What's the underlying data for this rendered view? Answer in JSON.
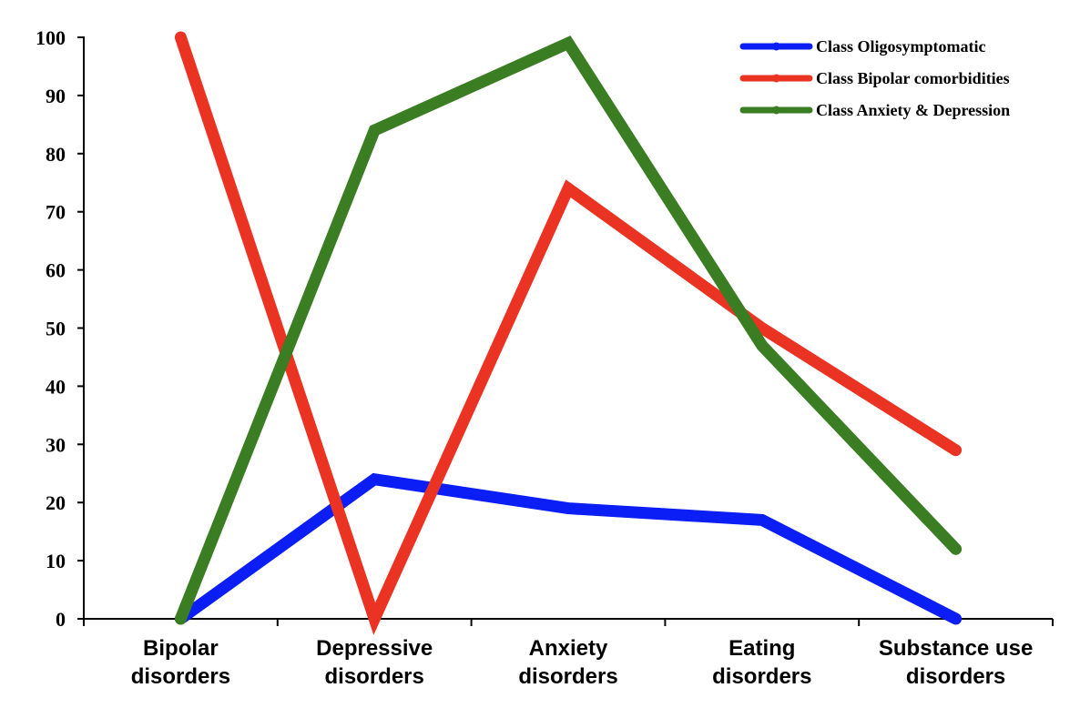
{
  "chart_data": {
    "type": "line",
    "title": "",
    "xlabel": "",
    "ylabel": "",
    "categories": [
      [
        "Bipolar",
        "disorders"
      ],
      [
        "Depressive",
        "disorders"
      ],
      [
        "Anxiety",
        "disorders"
      ],
      [
        "Eating",
        "disorders"
      ],
      [
        "Substance use",
        "disorders"
      ]
    ],
    "ylim": [
      0,
      100
    ],
    "yticks": [
      "0",
      "10",
      "20",
      "30",
      "40",
      "50",
      "60",
      "70",
      "80",
      "90",
      "100"
    ],
    "grid": false,
    "legend_position": "top-right",
    "series": [
      {
        "name": "Class Oligosymptomatic",
        "color": "#0a1ef5",
        "values": [
          0,
          24,
          19,
          17,
          0
        ]
      },
      {
        "name": "Class Bipolar comorbidities",
        "color": "#ea3323",
        "values": [
          100,
          0,
          74,
          50,
          29
        ]
      },
      {
        "name": "Class Anxiety & Depression",
        "color": "#3a7d22",
        "values": [
          0,
          84,
          99,
          47,
          12
        ]
      }
    ]
  }
}
